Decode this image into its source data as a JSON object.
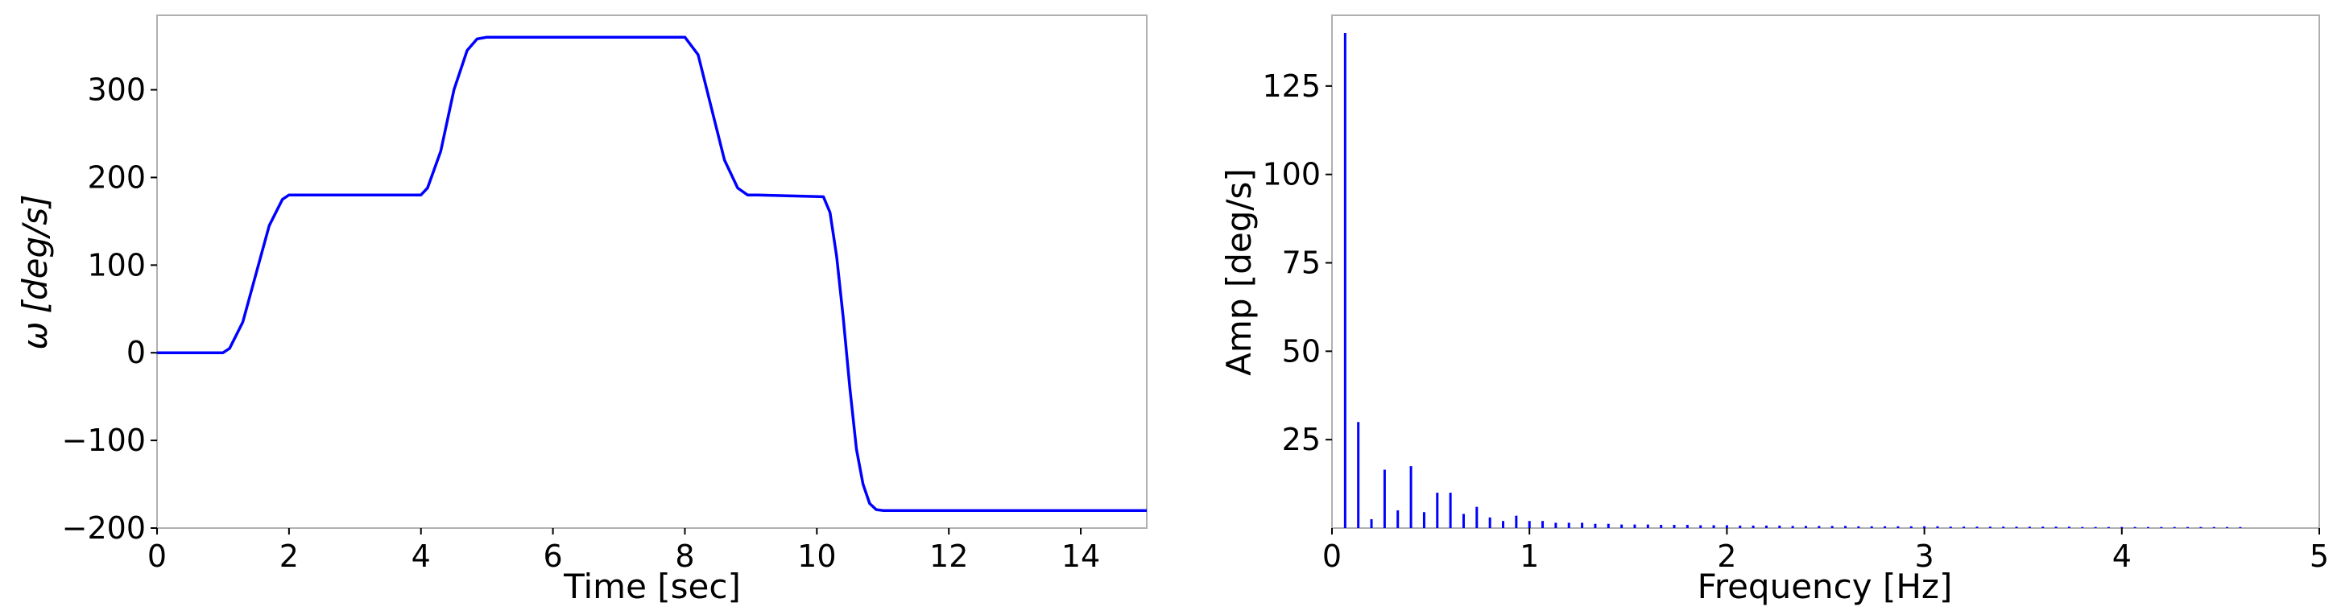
{
  "chart_data": [
    {
      "type": "line",
      "xlabel": "Time [sec]",
      "ylabel_symbol": "ω",
      "ylabel_unit": "[deg/s]",
      "xlim": [
        0,
        15
      ],
      "ylim": [
        -200,
        385
      ],
      "xticks": [
        0,
        2,
        4,
        6,
        8,
        10,
        12,
        14
      ],
      "yticks": [
        -200,
        -100,
        0,
        100,
        200,
        300
      ],
      "xtick_labels": [
        "0",
        "2",
        "4",
        "6",
        "8",
        "10",
        "12",
        "14"
      ],
      "ytick_labels": [
        "−200",
        "−100",
        "0",
        "100",
        "200",
        "300"
      ],
      "color": "#0000ff",
      "series": [
        {
          "x": [
            0,
            1.0,
            1.1,
            1.3,
            1.5,
            1.7,
            1.9,
            2.0,
            4.0,
            4.1,
            4.3,
            4.5,
            4.7,
            4.85,
            5.0,
            8.0,
            8.2,
            8.4,
            8.6,
            8.8,
            8.95,
            9.1,
            10.1,
            10.2,
            10.3,
            10.4,
            10.5,
            10.6,
            10.7,
            10.8,
            10.9,
            11.0,
            15.0
          ],
          "y": [
            0,
            0,
            5,
            35,
            90,
            145,
            175,
            180,
            180,
            188,
            230,
            300,
            345,
            358,
            360,
            360,
            340,
            280,
            220,
            188,
            180,
            180,
            178,
            160,
            110,
            40,
            -40,
            -110,
            -150,
            -172,
            -179,
            -180,
            -180
          ]
        }
      ]
    },
    {
      "type": "bar",
      "xlabel": "Frequency [Hz]",
      "ylabel": "Amp [deg/s]",
      "xlim": [
        0,
        5
      ],
      "ylim": [
        0,
        145
      ],
      "xticks": [
        0,
        1,
        2,
        3,
        4,
        5
      ],
      "yticks": [
        25,
        50,
        75,
        100,
        125
      ],
      "xtick_labels": [
        "0",
        "1",
        "2",
        "3",
        "4",
        "5"
      ],
      "ytick_labels": [
        "25",
        "50",
        "75",
        "100",
        "125"
      ],
      "color": "#0000ff",
      "series": [
        {
          "x": [
            0.0667,
            0.1333,
            0.2,
            0.2667,
            0.3333,
            0.4,
            0.4667,
            0.5333,
            0.6,
            0.6667,
            0.7333,
            0.8,
            0.8667,
            0.9333,
            1.0,
            1.0667,
            1.1333,
            1.2,
            1.2667,
            1.3333,
            1.4,
            1.4667,
            1.5333,
            1.6,
            1.6667,
            1.7333,
            1.8,
            1.8667,
            1.9333,
            2.0,
            2.0667,
            2.1333,
            2.2,
            2.2667,
            2.3333,
            2.4,
            2.4667,
            2.5333,
            2.6,
            2.6667,
            2.7333,
            2.8,
            2.8667,
            2.9333,
            3.0,
            3.0667,
            3.1333,
            3.2,
            3.2667,
            3.3333,
            3.4,
            3.4667,
            3.5333,
            3.6,
            3.6667,
            3.7333,
            3.8,
            3.8667,
            3.9333,
            4.0,
            4.0667,
            4.1333,
            4.2,
            4.2667,
            4.3333,
            4.4,
            4.4667,
            4.5333,
            4.6
          ],
          "values": [
            140,
            30,
            2.5,
            16.5,
            5,
            17.5,
            4.5,
            10,
            10,
            4,
            6,
            3,
            2,
            3.5,
            2,
            2,
            1.5,
            1.5,
            1.5,
            1.2,
            1.2,
            1.0,
            1.0,
            1.0,
            0.9,
            0.9,
            0.9,
            0.8,
            0.8,
            0.8,
            0.7,
            0.7,
            0.7,
            0.7,
            0.6,
            0.6,
            0.6,
            0.6,
            0.6,
            0.5,
            0.5,
            0.5,
            0.5,
            0.5,
            0.5,
            0.5,
            0.4,
            0.4,
            0.4,
            0.4,
            0.4,
            0.4,
            0.4,
            0.4,
            0.4,
            0.4,
            0.3,
            0.3,
            0.3,
            0.3,
            0.3,
            0.3,
            0.3,
            0.3,
            0.3,
            0.3,
            0.3,
            0.3,
            0.3
          ]
        }
      ]
    }
  ]
}
